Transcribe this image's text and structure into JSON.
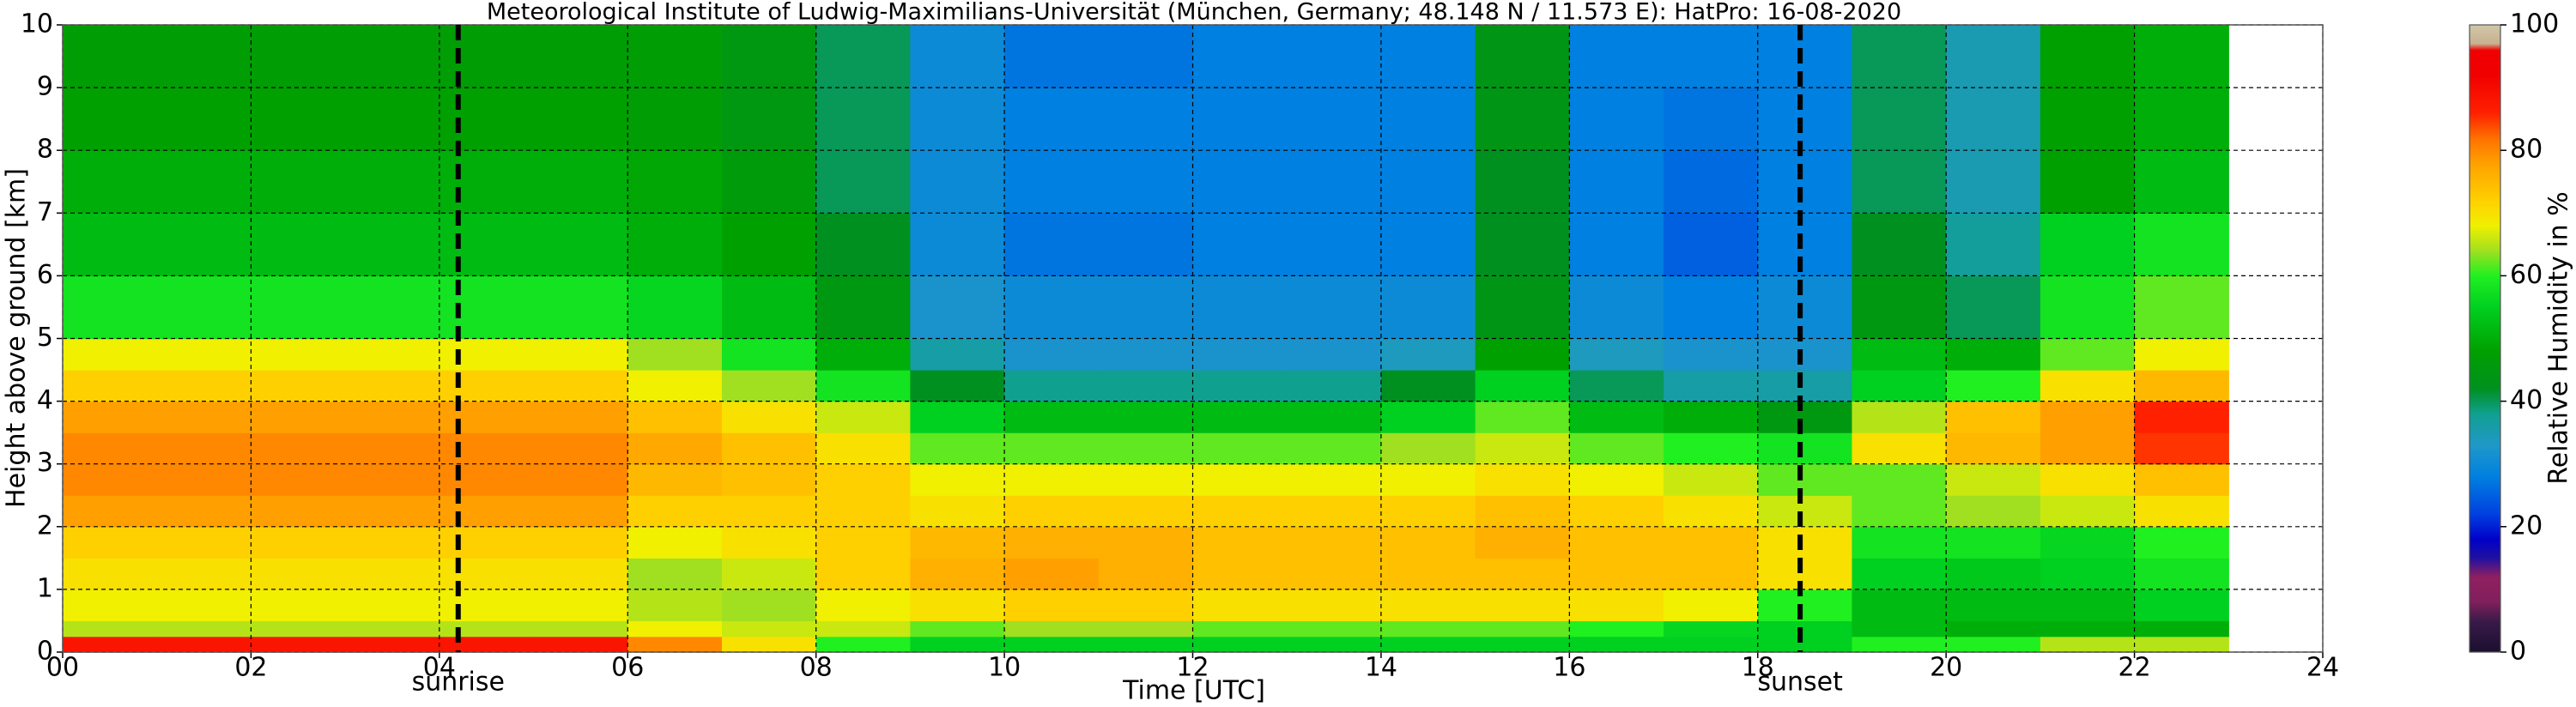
{
  "chart_data": {
    "type": "heatmap",
    "title": "Meteorological Institute of Ludwig-Maximilians-Universität (München, Germany; 48.148 N / 11.573 E):    HatPro: 16-08-2020",
    "x_label": "Time [UTC]",
    "y_label": "Height above ground [km]",
    "colorbar_label": "Relative Humidity in %",
    "xlim": [
      0,
      24
    ],
    "ylim": [
      0,
      10
    ],
    "xticks": [
      {
        "value": 0,
        "label": "00"
      },
      {
        "value": 2,
        "label": "02"
      },
      {
        "value": 4,
        "label": "04"
      },
      {
        "value": 6,
        "label": "06"
      },
      {
        "value": 8,
        "label": "08"
      },
      10,
      12,
      14,
      16,
      18,
      20,
      22,
      24
    ],
    "yticks": [
      0,
      1,
      2,
      3,
      4,
      5,
      6,
      7,
      8,
      9,
      10
    ],
    "grid": true,
    "x_edges": [
      0,
      1,
      2,
      3,
      4,
      5,
      6,
      7,
      8,
      9,
      10,
      11,
      12,
      13,
      14,
      15,
      16,
      17,
      18,
      19,
      20,
      21,
      22,
      23
    ],
    "y_edges": [
      0,
      0.25,
      0.5,
      1,
      1.5,
      2,
      2.5,
      3,
      3.5,
      4,
      4.5,
      5,
      6,
      7,
      8,
      9,
      10
    ],
    "values": [
      [
        88,
        65,
        68,
        70,
        72,
        78,
        80,
        80,
        78,
        72,
        68,
        58,
        52,
        50,
        48,
        47
      ],
      [
        88,
        65,
        68,
        70,
        72,
        78,
        80,
        80,
        78,
        72,
        68,
        58,
        52,
        50,
        48,
        47
      ],
      [
        88,
        65,
        68,
        70,
        72,
        78,
        80,
        80,
        78,
        72,
        68,
        58,
        52,
        50,
        48,
        47
      ],
      [
        88,
        65,
        68,
        70,
        72,
        78,
        80,
        80,
        78,
        72,
        68,
        58,
        52,
        50,
        48,
        47
      ],
      [
        88,
        65,
        68,
        70,
        72,
        78,
        80,
        80,
        78,
        72,
        68,
        58,
        52,
        50,
        48,
        47
      ],
      [
        88,
        65,
        68,
        70,
        72,
        78,
        80,
        80,
        78,
        72,
        68,
        58,
        52,
        50,
        48,
        47
      ],
      [
        80,
        68,
        65,
        64,
        68,
        72,
        75,
        77,
        74,
        68,
        64,
        56,
        50,
        49,
        47,
        47
      ],
      [
        70,
        66,
        64,
        66,
        70,
        72,
        74,
        74,
        70,
        64,
        58,
        52,
        48,
        46,
        45,
        45
      ],
      [
        60,
        66,
        68,
        72,
        72,
        72,
        72,
        70,
        66,
        58,
        50,
        45,
        42,
        40,
        40,
        40
      ],
      [
        55,
        62,
        70,
        76,
        75,
        70,
        68,
        62,
        55,
        42,
        36,
        32,
        30,
        30,
        30,
        30
      ],
      [
        55,
        64,
        72,
        78,
        76,
        72,
        68,
        62,
        52,
        38,
        32,
        30,
        27,
        28,
        28,
        27
      ],
      [
        55,
        64,
        72,
        76,
        76,
        72,
        68,
        62,
        52,
        38,
        32,
        30,
        27,
        28,
        28,
        27
      ],
      [
        55,
        62,
        70,
        74,
        74,
        72,
        68,
        62,
        52,
        38,
        32,
        30,
        28,
        28,
        28,
        28
      ],
      [
        55,
        62,
        70,
        74,
        74,
        72,
        68,
        62,
        52,
        38,
        32,
        30,
        28,
        28,
        28,
        28
      ],
      [
        55,
        62,
        70,
        74,
        74,
        72,
        68,
        64,
        55,
        42,
        34,
        30,
        28,
        28,
        28,
        28
      ],
      [
        55,
        62,
        70,
        74,
        76,
        74,
        70,
        66,
        62,
        55,
        48,
        44,
        42,
        42,
        44,
        44
      ],
      [
        55,
        60,
        70,
        74,
        74,
        72,
        68,
        62,
        52,
        40,
        34,
        30,
        28,
        28,
        28,
        28
      ],
      [
        55,
        56,
        68,
        74,
        74,
        70,
        66,
        60,
        50,
        36,
        32,
        28,
        25,
        26,
        27,
        28
      ],
      [
        55,
        55,
        60,
        70,
        70,
        66,
        62,
        58,
        45,
        36,
        32,
        30,
        28,
        28,
        28,
        28
      ],
      [
        60,
        52,
        52,
        55,
        58,
        62,
        62,
        70,
        65,
        55,
        52,
        45,
        42,
        40,
        40,
        40
      ],
      [
        60,
        50,
        52,
        54,
        58,
        64,
        66,
        75,
        74,
        60,
        50,
        40,
        37,
        35,
        35,
        35
      ],
      [
        65,
        50,
        52,
        55,
        56,
        66,
        70,
        78,
        78,
        70,
        62,
        58,
        55,
        48,
        48,
        48
      ],
      [
        65,
        50,
        55,
        58,
        60,
        70,
        74,
        85,
        86,
        75,
        68,
        62,
        58,
        52,
        50,
        50
      ]
    ],
    "colorscale": [
      {
        "value": 0,
        "color": "#1a0f2e"
      },
      {
        "value": 5,
        "color": "#3a1a4a"
      },
      {
        "value": 8,
        "color": "#80205a"
      },
      {
        "value": 12,
        "color": "#902060"
      },
      {
        "value": 15,
        "color": "#2010a0"
      },
      {
        "value": 18,
        "color": "#0000c8"
      },
      {
        "value": 22,
        "color": "#0040e0"
      },
      {
        "value": 28,
        "color": "#0080e0"
      },
      {
        "value": 33,
        "color": "#2098c8"
      },
      {
        "value": 38,
        "color": "#10a090"
      },
      {
        "value": 42,
        "color": "#009020"
      },
      {
        "value": 48,
        "color": "#00a000"
      },
      {
        "value": 55,
        "color": "#00d020"
      },
      {
        "value": 60,
        "color": "#20f020"
      },
      {
        "value": 64,
        "color": "#a0e020"
      },
      {
        "value": 68,
        "color": "#f0f000"
      },
      {
        "value": 72,
        "color": "#ffd000"
      },
      {
        "value": 78,
        "color": "#ffa000"
      },
      {
        "value": 82,
        "color": "#ff7000"
      },
      {
        "value": 86,
        "color": "#ff2000"
      },
      {
        "value": 92,
        "color": "#f00000"
      },
      {
        "value": 96,
        "color": "#f00000"
      },
      {
        "value": 97,
        "color": "#c8b090"
      },
      {
        "value": 100,
        "color": "#d0c8a8"
      }
    ],
    "clim": [
      0,
      100
    ],
    "cticks": [
      0,
      20,
      40,
      60,
      80,
      100
    ],
    "annotations": [
      {
        "text": "sunrise",
        "x": 4.2
      },
      {
        "text": "sunset",
        "x": 18.45
      }
    ]
  }
}
